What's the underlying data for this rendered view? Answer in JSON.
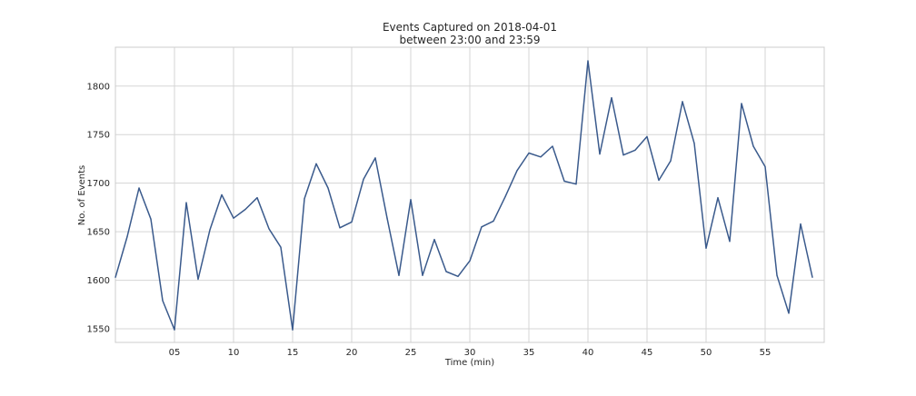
{
  "chart_data": {
    "type": "line",
    "title": [
      "Events Captured on 2018-04-01",
      "between 23:00 and 23:59"
    ],
    "xlabel": "Time (min)",
    "ylabel": "No. of Events",
    "xlim": [
      0,
      60
    ],
    "ylim": [
      1536,
      1840
    ],
    "grid": true,
    "line_color": "#3a5a8c",
    "x_ticks": [
      {
        "value": 5,
        "label": "05"
      },
      {
        "value": 10,
        "label": "10"
      },
      {
        "value": 15,
        "label": "15"
      },
      {
        "value": 20,
        "label": "20"
      },
      {
        "value": 25,
        "label": "25"
      },
      {
        "value": 30,
        "label": "30"
      },
      {
        "value": 35,
        "label": "35"
      },
      {
        "value": 40,
        "label": "40"
      },
      {
        "value": 45,
        "label": "45"
      },
      {
        "value": 50,
        "label": "50"
      },
      {
        "value": 55,
        "label": "55"
      }
    ],
    "y_ticks": [
      {
        "value": 1550,
        "label": "1550"
      },
      {
        "value": 1600,
        "label": "1600"
      },
      {
        "value": 1650,
        "label": "1650"
      },
      {
        "value": 1700,
        "label": "1700"
      },
      {
        "value": 1750,
        "label": "1750"
      },
      {
        "value": 1800,
        "label": "1800"
      }
    ],
    "x": [
      0,
      1,
      2,
      3,
      4,
      5,
      6,
      7,
      8,
      9,
      10,
      11,
      12,
      13,
      14,
      15,
      16,
      17,
      18,
      19,
      20,
      21,
      22,
      23,
      24,
      25,
      26,
      27,
      28,
      29,
      30,
      31,
      32,
      33,
      34,
      35,
      36,
      37,
      38,
      39,
      40,
      41,
      42,
      43,
      44,
      45,
      46,
      47,
      48,
      49,
      50,
      51,
      52,
      53,
      54,
      55,
      56,
      57,
      58,
      59
    ],
    "values": [
      1603,
      1645,
      1695,
      1663,
      1579,
      1549,
      1680,
      1601,
      1652,
      1688,
      1664,
      1673,
      1685,
      1653,
      1634,
      1549,
      1684,
      1720,
      1695,
      1654,
      1660,
      1704,
      1726,
      1664,
      1605,
      1683,
      1605,
      1642,
      1609,
      1604,
      1620,
      1655,
      1661,
      1686,
      1713,
      1731,
      1727,
      1738,
      1702,
      1699,
      1826,
      1730,
      1788,
      1729,
      1734,
      1748,
      1703,
      1723,
      1784,
      1741,
      1633,
      1685,
      1640,
      1782,
      1738,
      1717,
      1605,
      1566,
      1658,
      1603
    ]
  }
}
